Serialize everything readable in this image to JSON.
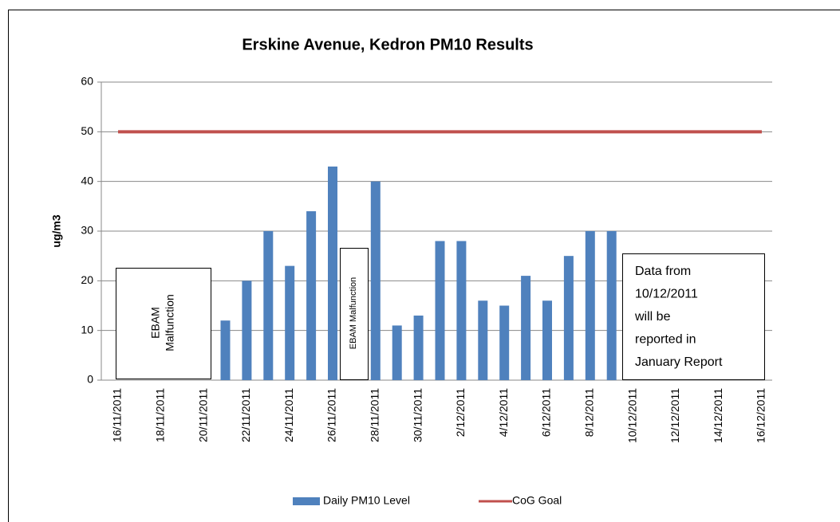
{
  "chart_data": {
    "type": "bar",
    "title": "Erskine Avenue, Kedron PM10 Results",
    "y_label": "ug/m3",
    "categories": [
      "16/11/2011",
      null,
      "18/11/2011",
      null,
      "20/11/2011",
      null,
      "22/11/2011",
      null,
      "24/11/2011",
      null,
      "26/11/2011",
      null,
      "28/11/2011",
      null,
      "30/11/2011",
      null,
      "2/12/2011",
      null,
      "4/12/2011",
      null,
      "6/12/2011",
      null,
      "8/12/2011",
      null,
      "10/12/2011",
      null,
      "12/12/2011",
      null,
      "14/12/2011",
      null,
      "16/12/2011"
    ],
    "series": [
      {
        "name": "Daily PM10 Level",
        "type": "bar",
        "color": "#4f81bd",
        "values": [
          null,
          null,
          null,
          null,
          null,
          12,
          20,
          30,
          23,
          34,
          43,
          null,
          40,
          11,
          13,
          28,
          28,
          16,
          15,
          21,
          16,
          25,
          30,
          30,
          null,
          null,
          null,
          null,
          null,
          null,
          null
        ]
      },
      {
        "name": "CoG Goal",
        "type": "line",
        "color": "#c0504d",
        "values": [
          50,
          50,
          50,
          50,
          50,
          50,
          50,
          50,
          50,
          50,
          50,
          50,
          50,
          50,
          50,
          50,
          50,
          50,
          50,
          50,
          50,
          50,
          50,
          50,
          50,
          50,
          50,
          50,
          50,
          50,
          50
        ]
      }
    ],
    "ylim": [
      0,
      60
    ],
    "yticks": [
      0,
      10,
      20,
      30,
      40,
      50,
      60
    ],
    "grid": true,
    "legend": "bottom",
    "annotations": [
      {
        "lines": [
          "EBAM",
          "Malfunction"
        ]
      },
      {
        "lines": [
          "EBAM Malfunction"
        ]
      },
      {
        "lines": [
          "Data from",
          "10/12/2011",
          "will be",
          "reported in",
          "January Report"
        ]
      }
    ]
  }
}
